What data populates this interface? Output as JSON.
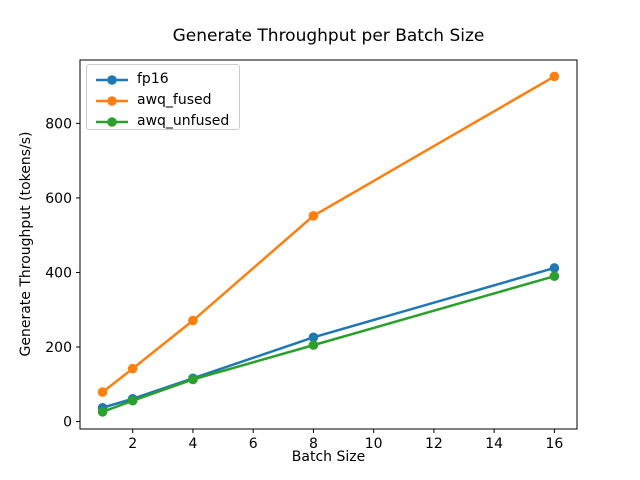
{
  "chart_data": {
    "type": "line",
    "title": "Generate Throughput per Batch Size",
    "xlabel": "Batch Size",
    "ylabel": "Generate Throughput (tokens/s)",
    "x": [
      1,
      2,
      4,
      8,
      16
    ],
    "series": [
      {
        "name": "fp16",
        "color": "#1f77b4",
        "values": [
          37,
          61,
          116,
          226,
          412
        ]
      },
      {
        "name": "awq_fused",
        "color": "#ff7f0e",
        "values": [
          79,
          142,
          271,
          552,
          926
        ]
      },
      {
        "name": "awq_unfused",
        "color": "#2ca02c",
        "values": [
          26,
          56,
          113,
          205,
          390
        ]
      }
    ],
    "xticks": [
      2,
      4,
      6,
      8,
      10,
      12,
      14,
      16
    ],
    "yticks": [
      0,
      200,
      400,
      600,
      800
    ],
    "xlim": [
      0.25,
      16.75
    ],
    "ylim": [
      -20,
      970
    ],
    "grid": false,
    "legend_position": "upper left",
    "marker": "o",
    "background": "#ffffff",
    "spine_color": "#000000"
  }
}
